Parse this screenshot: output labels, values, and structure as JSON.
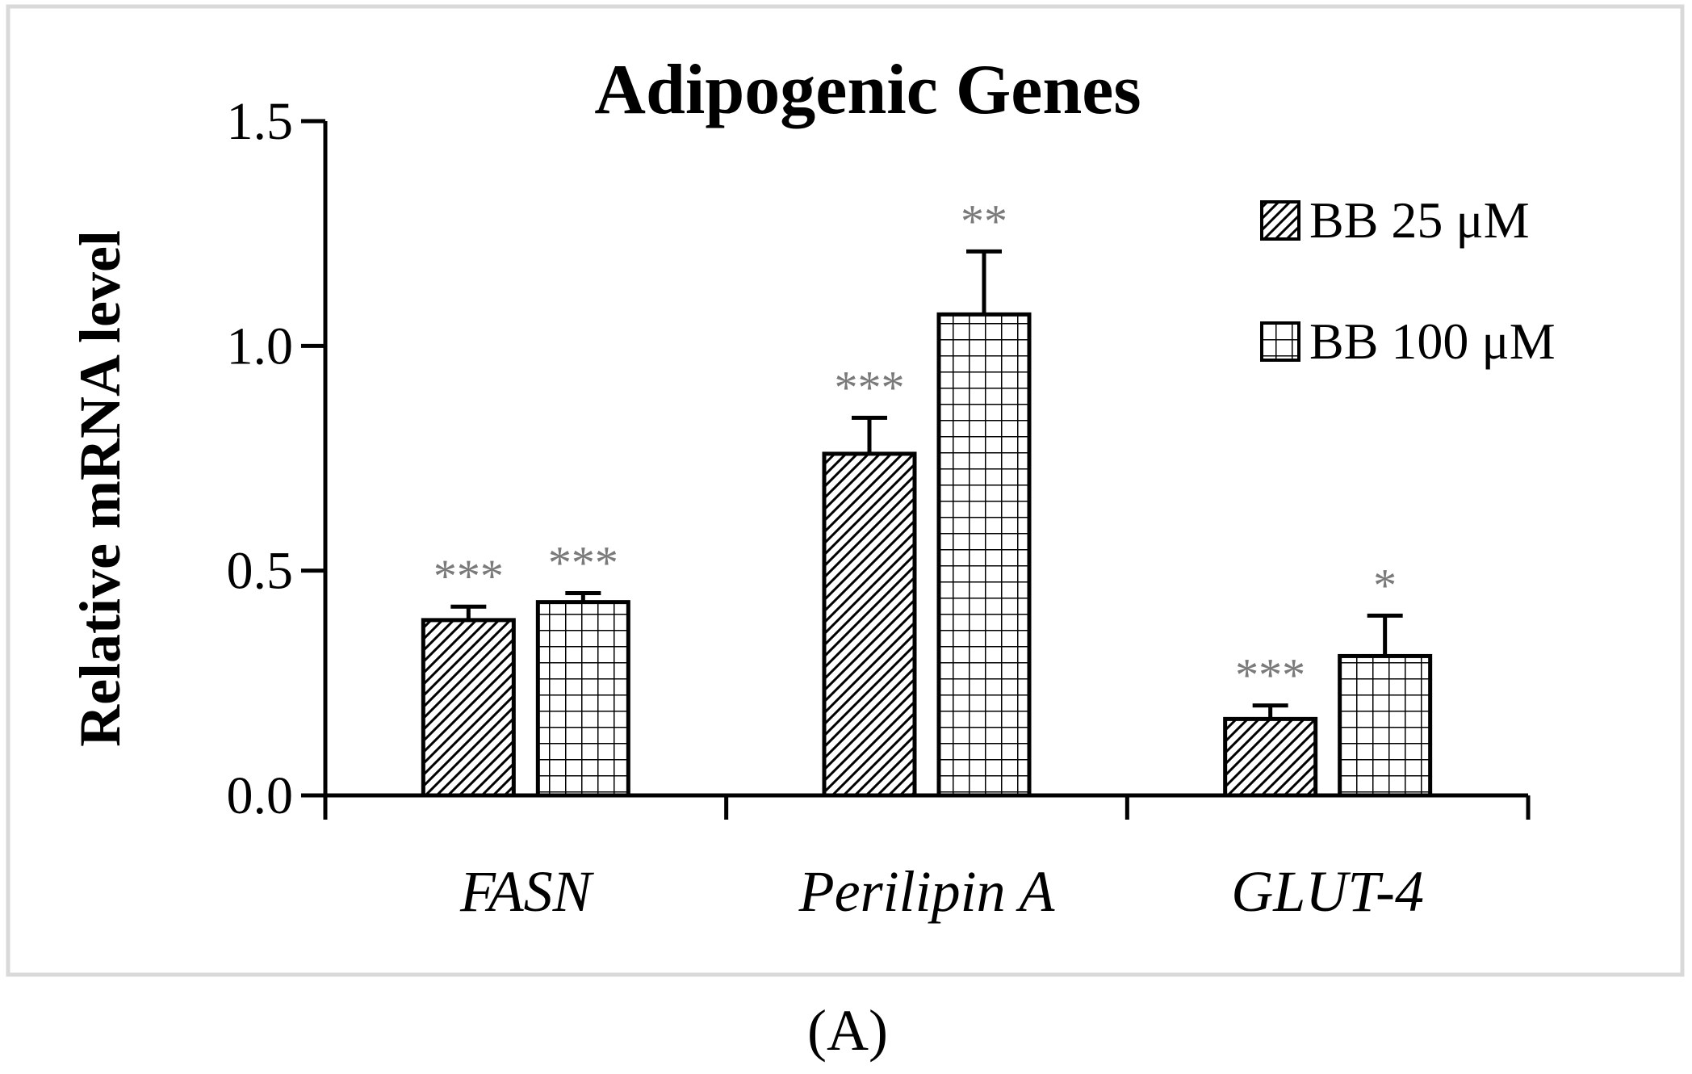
{
  "chart_data": {
    "type": "bar",
    "title": "Adipogenic Genes",
    "xlabel": "",
    "ylabel": "Relative mRNA level",
    "ylim": [
      0,
      1.5
    ],
    "yticks": [
      "0.0",
      "0.5",
      "1.0",
      "1.5"
    ],
    "ytick_values": [
      0,
      0.5,
      1.0,
      1.5
    ],
    "categories": [
      "FASN",
      "Perilipin A",
      "GLUT-4"
    ],
    "series": [
      {
        "name": "BB 25 μM",
        "pattern": "diagonal-hatch",
        "values": [
          0.39,
          0.76,
          0.17
        ],
        "errors": [
          0.03,
          0.08,
          0.03
        ],
        "significance": [
          "***",
          "***",
          "***"
        ]
      },
      {
        "name": "BB 100 μM",
        "pattern": "grid",
        "values": [
          0.43,
          1.07,
          0.31
        ],
        "errors": [
          0.02,
          0.14,
          0.09
        ],
        "significance": [
          "***",
          "**",
          "*"
        ]
      }
    ],
    "legend_position": "top-right",
    "grid": false
  },
  "panel_label": "(A)",
  "colors": {
    "axis": "#000000",
    "bar_fill": "#ffffff",
    "significance": "#7a7a7a",
    "frame": "#d9d9d9"
  }
}
